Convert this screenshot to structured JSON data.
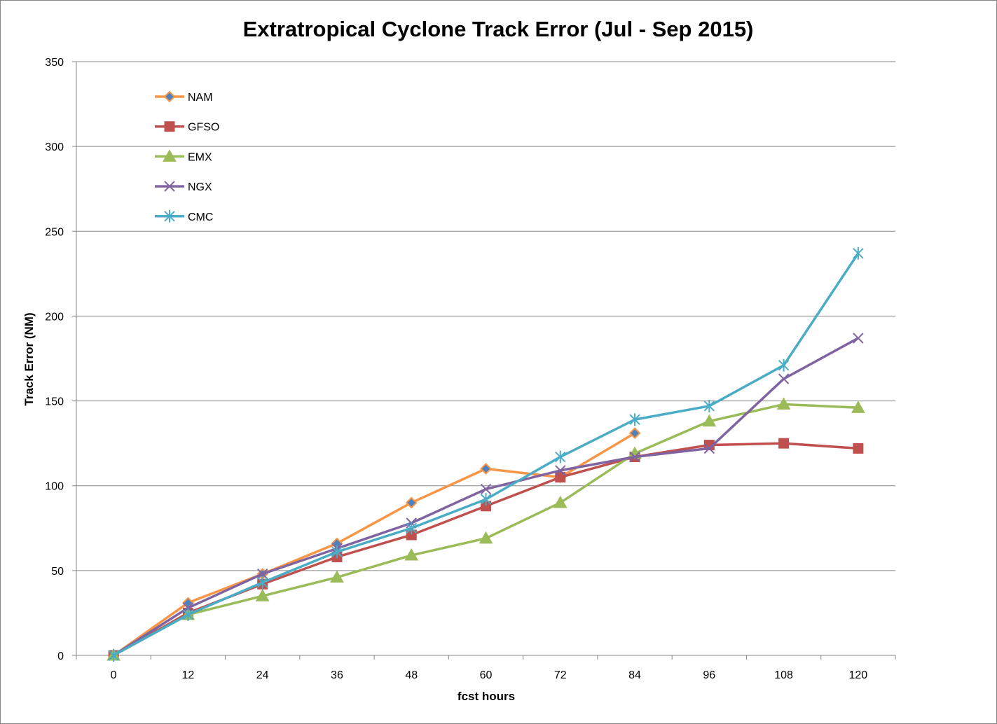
{
  "chart_data": {
    "type": "line",
    "title": "Extratropical Cyclone Track Error (Jul - Sep 2015)",
    "xlabel": "fcst hours",
    "ylabel": "Track Error (NM)",
    "categories": [
      "0",
      "12",
      "24",
      "36",
      "48",
      "60",
      "72",
      "84",
      "96",
      "108",
      "120"
    ],
    "ylim": [
      0,
      350
    ],
    "yticks": [
      0,
      50,
      100,
      150,
      200,
      250,
      300,
      350
    ],
    "grid": "horizontal",
    "legend_position": "top-left",
    "series": [
      {
        "name": "NAM",
        "color": "#F79646",
        "marker": "diamond",
        "marker_fill": "#4F81BD",
        "marker_stroke": "#F79646",
        "values": [
          0,
          31,
          48,
          66,
          90,
          110,
          105,
          131,
          null,
          null,
          null
        ]
      },
      {
        "name": "GFSO",
        "color": "#C0504D",
        "marker": "square",
        "marker_fill": "#C0504D",
        "marker_stroke": "#C0504D",
        "values": [
          0,
          25,
          42,
          58,
          71,
          88,
          105,
          117,
          124,
          125,
          122
        ]
      },
      {
        "name": "EMX",
        "color": "#9BBB59",
        "marker": "triangle",
        "marker_fill": "#9BBB59",
        "marker_stroke": "#9BBB59",
        "values": [
          0,
          24,
          35,
          46,
          59,
          69,
          90,
          119,
          138,
          148,
          146
        ]
      },
      {
        "name": "NGX",
        "color": "#8064A2",
        "marker": "x",
        "marker_fill": "none",
        "marker_stroke": "#8064A2",
        "values": [
          0,
          28,
          48,
          63,
          78,
          98,
          109,
          117,
          122,
          163,
          187
        ]
      },
      {
        "name": "CMC",
        "color": "#4BACC6",
        "marker": "star",
        "marker_fill": "none",
        "marker_stroke": "#4BACC6",
        "values": [
          0,
          24,
          43,
          61,
          75,
          92,
          117,
          139,
          147,
          171,
          237
        ]
      }
    ]
  }
}
